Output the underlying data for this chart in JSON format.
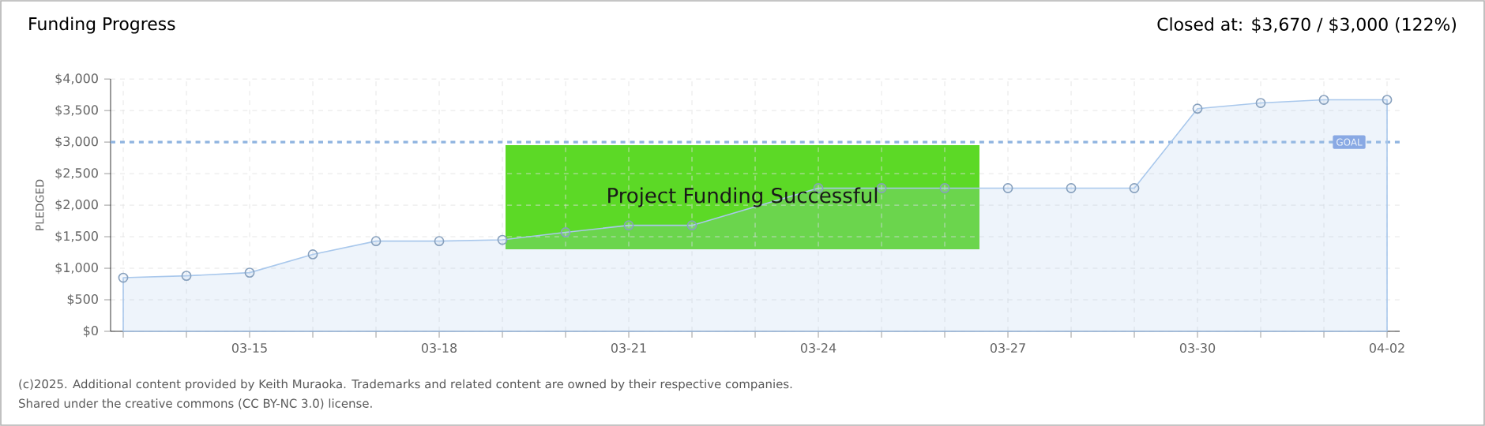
{
  "chart_data": {
    "type": "area",
    "title": "Funding Progress",
    "subtitle": "Closed at: $3,670 / $3,000 (122%)",
    "ylabel": "PLEDGED",
    "categories": [
      null,
      null,
      "03-15",
      null,
      null,
      "03-18",
      null,
      null,
      "03-21",
      null,
      null,
      "03-24",
      null,
      null,
      "03-27",
      null,
      null,
      "03-30",
      null,
      null,
      "04-02"
    ],
    "series": [
      {
        "color": "#a9c8ec",
        "values": [
          850,
          880,
          930,
          1220,
          1430,
          1430,
          1450,
          1570,
          1680,
          1680,
          null,
          2270,
          2270,
          2270,
          2270,
          2270,
          2270,
          3530,
          3620,
          3670,
          3670
        ]
      }
    ],
    "ylim": [
      0,
      4000
    ],
    "yticks": [
      {
        "value": 0,
        "label": "$0"
      },
      {
        "value": 500,
        "label": "$500"
      },
      {
        "value": 1000,
        "label": "$1,000"
      },
      {
        "value": 1500,
        "label": "$1,500"
      },
      {
        "value": 2000,
        "label": "$2,000"
      },
      {
        "value": 2500,
        "label": "$2,500"
      },
      {
        "value": 3000,
        "label": "$3,000"
      },
      {
        "value": 3500,
        "label": "$3,500"
      },
      {
        "value": 4000,
        "label": "$4,000"
      }
    ],
    "grid": true,
    "marker": "circle",
    "ref_lines": [
      {
        "axis": "y",
        "value": 3000,
        "label": "GOAL",
        "color": "#8fb4e0",
        "line_style": "dashed"
      }
    ],
    "annotations": [
      "Project Funding Successful",
      "(c)2025. Additional content provided by Keith Muraoka. Trademarks and related content are owned by their respective companies.",
      "Shared under the creative commons (CC BY-NC 3.0) license."
    ]
  }
}
